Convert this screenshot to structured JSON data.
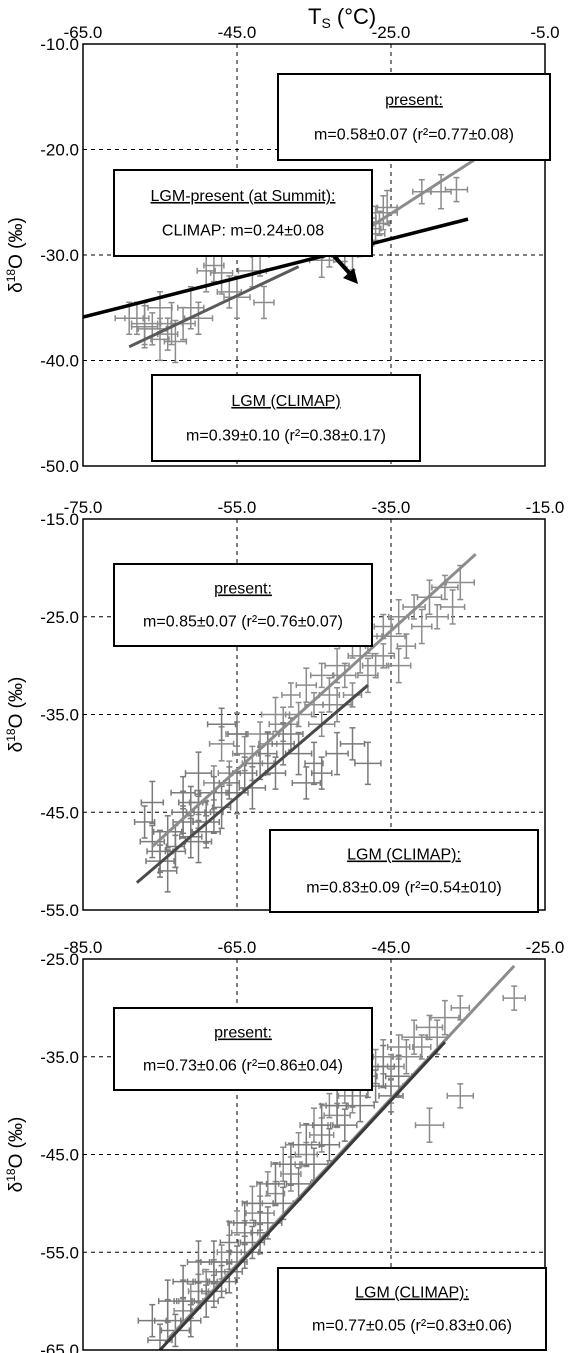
{
  "chart_data": [
    {
      "type": "scatter",
      "title": "T",
      "title_sub": "S",
      "title_unit": " (°C)",
      "ylabel_delta": "δ",
      "ylabel_sup": "18",
      "ylabel_rest": "O (‰)",
      "xlim": [
        -65,
        -5
      ],
      "ylim": [
        -50,
        -10
      ],
      "xticks": [
        -65,
        -45,
        -25,
        -5
      ],
      "yticks": [
        -10,
        -20,
        -30,
        -40,
        -50
      ],
      "xtick_labels": [
        "-65.0",
        "-45.0",
        "-25.0",
        "-5.0"
      ],
      "ytick_labels": [
        "-10.0",
        "-20.0",
        "-30.0",
        "-40.0",
        "-50.0"
      ],
      "grid": true,
      "series": [
        {
          "name": "present",
          "color": "#8c8c8c",
          "points": [
            [
              -33,
              -30
            ],
            [
              -31,
              -29
            ],
            [
              -30,
              -28.5
            ],
            [
              -29,
              -28
            ],
            [
              -28,
              -27.5
            ],
            [
              -27,
              -27
            ],
            [
              -32,
              -29.5
            ],
            [
              -30,
              -29.8
            ],
            [
              -29,
              -29
            ],
            [
              -28.5,
              -26.5
            ],
            [
              -27.5,
              -28
            ],
            [
              -26,
              -26
            ],
            [
              -21,
              -24
            ],
            [
              -18.5,
              -24
            ],
            [
              -16.5,
              -23.8
            ],
            [
              -34,
              -30.5
            ],
            [
              -31,
              -30
            ],
            [
              -29.5,
              -27.5
            ],
            [
              -26.5,
              -27
            ],
            [
              -25.5,
              -25.5
            ]
          ]
        },
        {
          "name": "LGM (CLIMAP)",
          "color": "#8c8c8c",
          "points": [
            [
              -58,
              -36
            ],
            [
              -57,
              -36.5
            ],
            [
              -56,
              -37
            ],
            [
              -55,
              -38
            ],
            [
              -54,
              -37.5
            ],
            [
              -53,
              -38.2
            ],
            [
              -52,
              -36.5
            ],
            [
              -51,
              -35
            ],
            [
              -50,
              -36
            ],
            [
              -49,
              -31.5
            ],
            [
              -48,
              -31
            ],
            [
              -47,
              -31.7
            ],
            [
              -46,
              -33.5
            ],
            [
              -45,
              -34
            ],
            [
              -43,
              -31.5
            ],
            [
              -42,
              -30
            ],
            [
              -41.5,
              -34.5
            ],
            [
              -53.5,
              -36.5
            ],
            [
              -55,
              -35
            ],
            [
              -57,
              -36.8
            ],
            [
              -59,
              -36
            ]
          ]
        }
      ],
      "fit_lines": [
        {
          "name": "present",
          "color": "#8c8c8c",
          "x": [
            -34,
            -14
          ],
          "y": [
            -30.3,
            -20.9
          ]
        },
        {
          "name": "LGM (CLIMAP)",
          "color": "#5a5a5a",
          "x": [
            -59,
            -37
          ],
          "y": [
            -38.7,
            -31.1
          ]
        },
        {
          "name": "LGM-present (at Summit)",
          "color": "#000000",
          "x": [
            -71,
            -15
          ],
          "y": [
            -37,
            -26.6
          ]
        }
      ],
      "boxes": [
        {
          "title": "present:",
          "text": "m=0.58±0.07 (r²=0.77±0.08)"
        },
        {
          "title": "LGM-present (at Summit):",
          "text": "CLIMAP: m=0.24±0.08"
        },
        {
          "title": "LGM (CLIMAP)",
          "text": "m=0.39±0.10 (r²=0.38±0.17)"
        }
      ]
    },
    {
      "type": "scatter",
      "ylabel_delta": "δ",
      "ylabel_sup": "18",
      "ylabel_rest": "O (‰)",
      "xlim": [
        -75,
        -15
      ],
      "ylim": [
        -55,
        -15
      ],
      "xticks": [
        -75,
        -55,
        -35,
        -15
      ],
      "yticks": [
        -15,
        -25,
        -35,
        -45,
        -55
      ],
      "xtick_labels": [
        "-75.0",
        "-55.0",
        "-35.0",
        "-15.0"
      ],
      "ytick_labels": [
        "-15.0",
        "-25.0",
        "-35.0",
        "-45.0",
        "-55.0"
      ],
      "grid": true,
      "series": [
        {
          "name": "present",
          "color": "#8c8c8c",
          "points": [
            [
              -60,
              -44
            ],
            [
              -58,
              -42
            ],
            [
              -56,
              -41
            ],
            [
              -54,
              -39
            ],
            [
              -52,
              -37
            ],
            [
              -50,
              -35
            ],
            [
              -48,
              -33
            ],
            [
              -46,
              -32
            ],
            [
              -44,
              -31
            ],
            [
              -42,
              -30
            ],
            [
              -40,
              -28
            ],
            [
              -38,
              -27
            ],
            [
              -36,
              -26
            ],
            [
              -34,
              -25
            ],
            [
              -32,
              -24
            ],
            [
              -30,
              -23
            ],
            [
              -28,
              -22
            ],
            [
              -26,
              -21.5
            ],
            [
              -45,
              -34
            ],
            [
              -43,
              -33
            ],
            [
              -41,
              -31
            ],
            [
              -39,
              -29
            ],
            [
              -37,
              -30
            ],
            [
              -35,
              -27
            ],
            [
              -33,
              -28
            ],
            [
              -31,
              -26
            ],
            [
              -29,
              -25
            ],
            [
              -27,
              -24
            ],
            [
              -47,
              -35
            ],
            [
              -49,
              -36
            ],
            [
              -51,
              -38
            ],
            [
              -53,
              -40
            ],
            [
              -55,
              -37
            ],
            [
              -57,
              -38
            ],
            [
              -44,
              -36
            ],
            [
              -42,
              -34
            ],
            [
              -40,
              -33
            ],
            [
              -38,
              -31
            ],
            [
              -36,
              -29
            ],
            [
              -34,
              -30
            ]
          ]
        },
        {
          "name": "LGM (CLIMAP)",
          "color": "#7a7a7a",
          "points": [
            [
              -66,
              -48
            ],
            [
              -65,
              -49
            ],
            [
              -64,
              -47
            ],
            [
              -63,
              -48.5
            ],
            [
              -62,
              -46
            ],
            [
              -61,
              -47.5
            ],
            [
              -60,
              -45
            ],
            [
              -59,
              -46
            ],
            [
              -58,
              -43
            ],
            [
              -57,
              -44.5
            ],
            [
              -56,
              -42
            ],
            [
              -55,
              -43
            ],
            [
              -54,
              -41
            ],
            [
              -53,
              -42.5
            ],
            [
              -52,
              -40
            ],
            [
              -51,
              -39
            ],
            [
              -50,
              -41
            ],
            [
              -49,
              -38
            ],
            [
              -48,
              -37
            ],
            [
              -47,
              -39
            ],
            [
              -46,
              -42
            ],
            [
              -45,
              -40
            ],
            [
              -44,
              -41
            ],
            [
              -42,
              -39
            ],
            [
              -40,
              -38
            ],
            [
              -38,
              -40
            ],
            [
              -65,
              -50
            ],
            [
              -64,
              -51
            ],
            [
              -63,
              -49
            ],
            [
              -62,
              -45
            ],
            [
              -61,
              -44
            ],
            [
              -60,
              -48
            ],
            [
              -59,
              -47
            ],
            [
              -58,
              -45
            ],
            [
              -67,
              -46
            ],
            [
              -66,
              -44
            ],
            [
              -62,
              -43
            ],
            [
              -60,
              -41
            ],
            [
              -57,
              -36
            ],
            [
              -55,
              -37
            ]
          ]
        }
      ],
      "fit_lines": [
        {
          "name": "present",
          "color": "#8c8c8c",
          "x": [
            -66,
            -24
          ],
          "y": [
            -48.5,
            -18.6
          ]
        },
        {
          "name": "LGM (CLIMAP)",
          "color": "#4a4a4a",
          "x": [
            -68,
            -38
          ],
          "y": [
            -52.2,
            -32
          ]
        }
      ],
      "boxes": [
        {
          "title": "present:",
          "text": "m=0.85±0.07 (r²=0.76±0.07)"
        },
        {
          "title": "LGM (CLIMAP):",
          "text": "m=0.83±0.09 (r²=0.54±010)"
        }
      ]
    },
    {
      "type": "scatter",
      "ylabel_delta": "δ",
      "ylabel_sup": "18",
      "ylabel_rest": "O (‰)",
      "xlim": [
        -85,
        -25
      ],
      "ylim": [
        -65,
        -25
      ],
      "xticks": [
        -85,
        -65,
        -45,
        -25
      ],
      "yticks": [
        -25,
        -35,
        -45,
        -55,
        -65
      ],
      "xtick_labels": [
        "-85.0",
        "-65.0",
        "-45.0",
        "-25.0"
      ],
      "ytick_labels": [
        "-25.0",
        "-35.0",
        "-45.0",
        "-55.0",
        "-65.0"
      ],
      "grid": true,
      "series": [
        {
          "name": "present",
          "color": "#8c8c8c",
          "points": [
            [
              -72,
              -61
            ],
            [
              -70,
              -59
            ],
            [
              -68,
              -57
            ],
            [
              -66,
              -55
            ],
            [
              -64,
              -53
            ],
            [
              -62,
              -51
            ],
            [
              -60,
              -49
            ],
            [
              -58,
              -47
            ],
            [
              -56,
              -45
            ],
            [
              -54,
              -43
            ],
            [
              -52,
              -41
            ],
            [
              -50,
              -39
            ],
            [
              -48,
              -37
            ],
            [
              -46,
              -35
            ],
            [
              -44,
              -34
            ],
            [
              -42,
              -33
            ],
            [
              -40,
              -32
            ],
            [
              -38,
              -31
            ],
            [
              -36,
              -30
            ],
            [
              -63,
              -50
            ],
            [
              -61,
              -48
            ],
            [
              -59,
              -46
            ],
            [
              -57,
              -44
            ],
            [
              -55,
              -42
            ],
            [
              -53,
              -40
            ],
            [
              -51,
              -38
            ],
            [
              -49,
              -36
            ],
            [
              -47,
              -36
            ],
            [
              -45,
              -36
            ],
            [
              -43,
              -35
            ],
            [
              -41,
              -34
            ],
            [
              -39,
              -33
            ],
            [
              -29,
              -29
            ],
            [
              -45,
              -38
            ],
            [
              -36,
              -39
            ],
            [
              -40,
              -42
            ],
            [
              -65,
              -52
            ],
            [
              -67,
              -56
            ],
            [
              -69,
              -58
            ],
            [
              -71,
              -60
            ]
          ]
        },
        {
          "name": "LGM (CLIMAP)",
          "color": "#7a7a7a",
          "points": [
            [
              -75,
              -64
            ],
            [
              -74,
              -62
            ],
            [
              -73,
              -63
            ],
            [
              -72,
              -60
            ],
            [
              -71,
              -62
            ],
            [
              -70,
              -58
            ],
            [
              -69,
              -60
            ],
            [
              -68,
              -56
            ],
            [
              -67,
              -58
            ],
            [
              -66,
              -54
            ],
            [
              -65,
              -56
            ],
            [
              -64,
              -52
            ],
            [
              -63,
              -54
            ],
            [
              -62,
              -50
            ],
            [
              -61,
              -52
            ],
            [
              -60,
              -48
            ],
            [
              -59,
              -50
            ],
            [
              -58,
              -46
            ],
            [
              -57,
              -48
            ],
            [
              -56,
              -44
            ],
            [
              -55,
              -46
            ],
            [
              -54,
              -42
            ],
            [
              -53,
              -44
            ],
            [
              -52,
              -40
            ],
            [
              -51,
              -42
            ],
            [
              -50,
              -38
            ],
            [
              -49,
              -40
            ],
            [
              -48,
              -37
            ],
            [
              -47,
              -38
            ],
            [
              -46,
              -36
            ],
            [
              -45,
              -39
            ],
            [
              -44,
              -37
            ],
            [
              -76,
              -62
            ],
            [
              -74,
              -60
            ],
            [
              -72,
              -58
            ],
            [
              -70,
              -56
            ],
            [
              -68,
              -59
            ],
            [
              -66,
              -57
            ],
            [
              -64,
              -55
            ],
            [
              -62,
              -53
            ]
          ]
        }
      ],
      "fit_lines": [
        {
          "name": "present",
          "color": "#8c8c8c",
          "x": [
            -74,
            -29
          ],
          "y": [
            -63.9,
            -25.7
          ]
        },
        {
          "name": "LGM (CLIMAP)",
          "color": "#3a3a3a",
          "x": [
            -75,
            -38
          ],
          "y": [
            -65,
            -33.5
          ]
        }
      ],
      "boxes": [
        {
          "title": "present:",
          "text": "m=0.73±0.06 (r²=0.86±0.04)"
        },
        {
          "title": "LGM (CLIMAP):",
          "text": "m=0.77±0.05 (r²=0.83±0.06)"
        }
      ]
    }
  ]
}
